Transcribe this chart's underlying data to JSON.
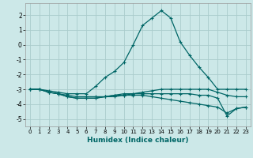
{
  "xlabel": "Humidex (Indice chaleur)",
  "xlim": [
    -0.5,
    23.5
  ],
  "ylim": [
    -5.5,
    2.8
  ],
  "background_color": "#cce8e8",
  "grid_color": "#aacccc",
  "line_color": "#006666",
  "xticks": [
    0,
    1,
    2,
    3,
    4,
    5,
    6,
    7,
    8,
    9,
    10,
    11,
    12,
    13,
    14,
    15,
    16,
    17,
    18,
    19,
    20,
    21,
    22,
    23
  ],
  "yticks": [
    -5,
    -4,
    -3,
    -2,
    -1,
    0,
    1,
    2
  ],
  "series": [
    {
      "x": [
        0,
        1,
        2,
        3,
        4,
        5,
        6,
        7,
        8,
        9,
        10,
        11,
        12,
        13,
        14,
        15,
        16,
        17,
        18,
        19,
        20,
        21,
        22,
        23
      ],
      "y": [
        -3.0,
        -3.0,
        -3.1,
        -3.2,
        -3.3,
        -3.3,
        -3.3,
        -2.8,
        -2.2,
        -1.8,
        -1.2,
        0.0,
        1.3,
        1.8,
        2.3,
        1.8,
        0.2,
        -0.7,
        -1.5,
        -2.2,
        -3.0,
        -3.0,
        -3.0,
        -3.0
      ]
    },
    {
      "x": [
        0,
        1,
        2,
        3,
        4,
        5,
        6,
        7,
        8,
        9,
        10,
        11,
        12,
        13,
        14,
        15,
        16,
        17,
        18,
        19,
        20,
        21,
        22,
        23
      ],
      "y": [
        -3.0,
        -3.0,
        -3.2,
        -3.3,
        -3.4,
        -3.5,
        -3.5,
        -3.5,
        -3.5,
        -3.5,
        -3.4,
        -3.3,
        -3.3,
        -3.3,
        -3.3,
        -3.3,
        -3.3,
        -3.3,
        -3.4,
        -3.4,
        -3.6,
        -4.8,
        -4.3,
        -4.2
      ]
    },
    {
      "x": [
        0,
        1,
        2,
        3,
        4,
        5,
        6,
        7,
        8,
        9,
        10,
        11,
        12,
        13,
        14,
        15,
        16,
        17,
        18,
        19,
        20,
        21,
        22,
        23
      ],
      "y": [
        -3.0,
        -3.0,
        -3.2,
        -3.3,
        -3.5,
        -3.6,
        -3.6,
        -3.6,
        -3.5,
        -3.4,
        -3.4,
        -3.4,
        -3.4,
        -3.5,
        -3.6,
        -3.7,
        -3.8,
        -3.9,
        -4.0,
        -4.1,
        -4.2,
        -4.6,
        -4.3,
        -4.2
      ]
    },
    {
      "x": [
        0,
        1,
        2,
        3,
        4,
        5,
        6,
        7,
        8,
        9,
        10,
        11,
        12,
        13,
        14,
        15,
        16,
        17,
        18,
        19,
        20,
        21,
        22,
        23
      ],
      "y": [
        -3.0,
        -3.0,
        -3.2,
        -3.3,
        -3.5,
        -3.6,
        -3.6,
        -3.6,
        -3.5,
        -3.4,
        -3.3,
        -3.3,
        -3.2,
        -3.1,
        -3.0,
        -3.0,
        -3.0,
        -3.0,
        -3.0,
        -3.0,
        -3.2,
        -3.4,
        -3.5,
        -3.5
      ]
    }
  ]
}
